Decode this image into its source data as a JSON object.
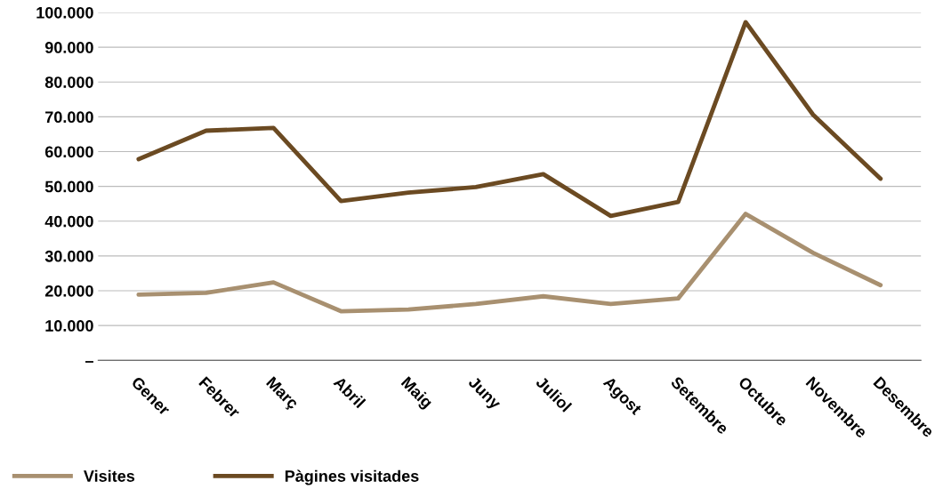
{
  "chart_data": {
    "type": "line",
    "categories": [
      "Gener",
      "Febrer",
      "Març",
      "Abril",
      "Maig",
      "Juny",
      "Juliol",
      "Agost",
      "Setembre",
      "Octubre",
      "Novembre",
      "Desembre"
    ],
    "series": [
      {
        "name": "Visites",
        "color": "#a89070",
        "values": [
          18900,
          19400,
          22400,
          14100,
          14600,
          16200,
          18400,
          16200,
          17800,
          42100,
          30900,
          21600
        ]
      },
      {
        "name": "Pàgines visitades",
        "color": "#6b4a22",
        "values": [
          57800,
          66000,
          66800,
          45800,
          48200,
          49800,
          53500,
          41500,
          45500,
          97200,
          70600,
          52200
        ]
      }
    ],
    "ylim": [
      0,
      100000
    ],
    "yticks": [
      {
        "value": 0,
        "label": "–"
      },
      {
        "value": 10000,
        "label": "10.000"
      },
      {
        "value": 20000,
        "label": "20.000"
      },
      {
        "value": 30000,
        "label": "30.000"
      },
      {
        "value": 40000,
        "label": "40.000"
      },
      {
        "value": 50000,
        "label": "50.000"
      },
      {
        "value": 60000,
        "label": "60.000"
      },
      {
        "value": 70000,
        "label": "70.000"
      },
      {
        "value": 80000,
        "label": "80.000"
      },
      {
        "value": 90000,
        "label": "90.000"
      },
      {
        "value": 100000,
        "label": "100.000"
      }
    ],
    "grid": "y",
    "legend": "bottom",
    "marker": "none",
    "line_style": "solid"
  }
}
